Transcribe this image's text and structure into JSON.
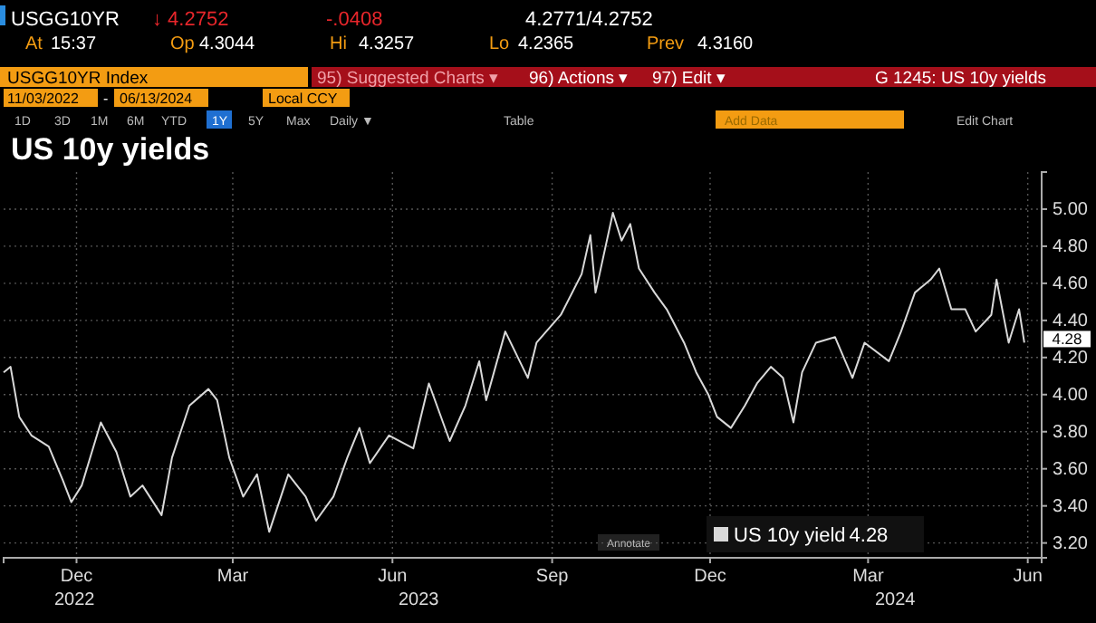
{
  "chart_data": {
    "type": "line",
    "title": "US 10y yields",
    "annotations": [
      "USGG10YR",
      "↓ 4.2752",
      "-.0408",
      "4.2771/4.2752",
      "At",
      "15:37",
      "Op",
      "4.3044",
      "Hi",
      "4.3257",
      "Lo",
      "4.2365",
      "Prev",
      "4.3160",
      "USGG10YR Index",
      "95) Suggested Charts ▾",
      "96) Actions ▾",
      "97) Edit ▾",
      "G 1245: US 10y yields",
      "11/03/2022",
      "-",
      "06/13/2024",
      "Local CCY",
      "1D",
      "3D",
      "1M",
      "6M",
      "YTD",
      "1Y",
      "5Y",
      "Max",
      "Daily ▼",
      "Table",
      "Add Data",
      "Edit Chart",
      "Annotate",
      "2022",
      "2023",
      "2024"
    ],
    "xlim": [
      "2022-11-03",
      "2024-06-23"
    ],
    "xticks": [
      {
        "value": "2022-12-15",
        "label": "Dec"
      },
      {
        "value": "2023-03-15",
        "label": "Mar"
      },
      {
        "value": "2023-06-15",
        "label": "Jun"
      },
      {
        "value": "2023-09-15",
        "label": "Sep"
      },
      {
        "value": "2023-12-15",
        "label": "Dec"
      },
      {
        "value": "2024-03-15",
        "label": "Mar"
      },
      {
        "value": "2024-06-15",
        "label": "Jun"
      }
    ],
    "ylim": [
      3.12,
      5.2
    ],
    "yticks": [
      {
        "value": 3.2,
        "label": "3.20"
      },
      {
        "value": 3.4,
        "label": "3.40"
      },
      {
        "value": 3.6,
        "label": "3.60"
      },
      {
        "value": 3.8,
        "label": "3.80"
      },
      {
        "value": 4.0,
        "label": "4.00"
      },
      {
        "value": 4.2,
        "label": "4.20"
      },
      {
        "value": 4.4,
        "label": "4.40"
      },
      {
        "value": 4.6,
        "label": "4.60"
      },
      {
        "value": 4.8,
        "label": "4.80"
      },
      {
        "value": 5.0,
        "label": "5.00"
      }
    ],
    "grid": true,
    "legend": "bottom right",
    "marker": "none",
    "line_style": "solid",
    "x": [
      "2022-11-03",
      "2022-11-07",
      "2022-11-12",
      "2022-11-19",
      "2022-11-29",
      "2022-12-07",
      "2022-12-12",
      "2022-12-18",
      "2022-12-29",
      "2023-01-07",
      "2023-01-15",
      "2023-01-22",
      "2023-02-02",
      "2023-02-08",
      "2023-02-18",
      "2023-03-01",
      "2023-03-06",
      "2023-03-13",
      "2023-03-21",
      "2023-03-29",
      "2023-04-05",
      "2023-04-16",
      "2023-04-26",
      "2023-05-02",
      "2023-05-12",
      "2023-05-20",
      "2023-05-27",
      "2023-06-02",
      "2023-06-13",
      "2023-06-27",
      "2023-07-06",
      "2023-07-18",
      "2023-07-27",
      "2023-08-04",
      "2023-08-08",
      "2023-08-19",
      "2023-09-01",
      "2023-09-06",
      "2023-09-20",
      "2023-10-02",
      "2023-10-07",
      "2023-10-10",
      "2023-10-20",
      "2023-10-25",
      "2023-10-30",
      "2023-11-04",
      "2023-11-13",
      "2023-11-20",
      "2023-11-30",
      "2023-12-07",
      "2023-12-14",
      "2023-12-19",
      "2023-12-27",
      "2024-01-04",
      "2024-01-11",
      "2024-01-19",
      "2024-01-26",
      "2024-02-01",
      "2024-02-06",
      "2024-02-14",
      "2024-02-25",
      "2024-03-06",
      "2024-03-13",
      "2024-03-27",
      "2024-04-03",
      "2024-04-11",
      "2024-04-20",
      "2024-04-25",
      "2024-05-02",
      "2024-05-10",
      "2024-05-16",
      "2024-05-25",
      "2024-05-28",
      "2024-06-04",
      "2024-06-10",
      "2024-06-13"
    ],
    "series": [
      {
        "name": "US 10y yield",
        "color": "#d9d9d9",
        "value_labels": [
          null,
          null,
          null,
          null,
          null,
          null,
          null,
          null,
          null,
          null,
          null,
          null,
          null,
          null,
          null,
          null,
          null,
          null,
          null,
          null,
          null,
          null,
          null,
          null,
          null,
          null,
          null,
          null,
          null,
          null,
          null,
          null,
          null,
          null,
          null,
          null,
          null,
          null,
          null,
          null,
          null,
          null,
          null,
          null,
          null,
          null,
          null,
          null,
          null,
          null,
          null,
          null,
          null,
          null,
          null,
          null,
          null,
          null,
          null,
          null,
          null,
          null,
          null,
          null,
          null,
          null,
          null,
          null,
          null,
          null,
          null,
          null,
          null,
          null,
          null,
          "4.28"
        ],
        "values": [
          4.12,
          4.15,
          3.88,
          3.78,
          3.72,
          3.54,
          3.42,
          3.51,
          3.85,
          3.69,
          3.45,
          3.51,
          3.35,
          3.66,
          3.94,
          4.03,
          3.97,
          3.66,
          3.45,
          3.57,
          3.26,
          3.57,
          3.45,
          3.32,
          3.45,
          3.66,
          3.82,
          3.63,
          3.78,
          3.71,
          4.06,
          3.75,
          3.94,
          4.18,
          3.97,
          4.34,
          4.09,
          4.28,
          4.43,
          4.65,
          4.86,
          4.55,
          4.98,
          4.83,
          4.92,
          4.68,
          4.55,
          4.46,
          4.28,
          4.12,
          4.0,
          3.88,
          3.82,
          3.94,
          4.06,
          4.15,
          4.09,
          3.85,
          4.12,
          4.28,
          4.31,
          4.09,
          4.28,
          4.18,
          4.34,
          4.55,
          4.62,
          4.68,
          4.46,
          4.46,
          4.34,
          4.43,
          4.62,
          4.28,
          4.46,
          4.28
        ]
      }
    ]
  }
}
